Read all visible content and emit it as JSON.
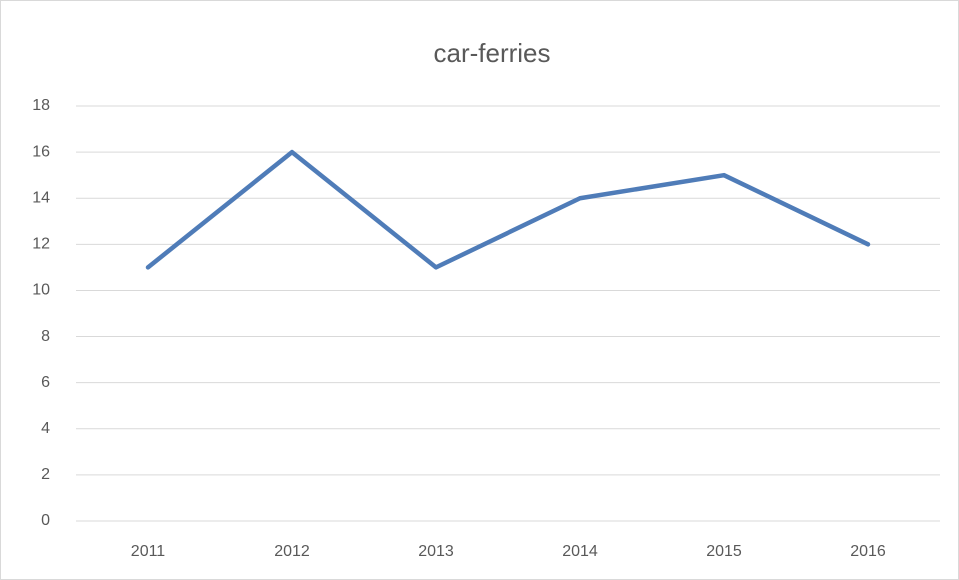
{
  "chart_data": {
    "type": "line",
    "title": "car-ferries",
    "categories": [
      "2011",
      "2012",
      "2013",
      "2014",
      "2015",
      "2016"
    ],
    "series": [
      {
        "name": "car-ferries",
        "color": "#4f7cb8",
        "values": [
          11,
          16,
          11,
          14,
          15,
          12
        ]
      }
    ],
    "ylim": [
      0,
      18
    ],
    "yticks": [
      0,
      2,
      4,
      6,
      8,
      10,
      12,
      14,
      16,
      18
    ],
    "grid": true
  }
}
